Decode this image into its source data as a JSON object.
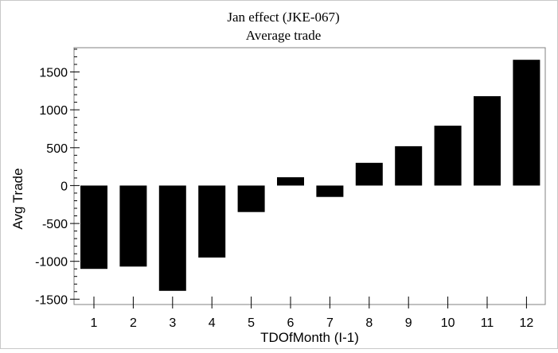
{
  "chart_data": {
    "type": "bar",
    "title": "Jan effect (JKE-067)",
    "subtitle": "Average trade",
    "xlabel": "TDOfMonth (I-1)",
    "ylabel": "Avg Trade",
    "categories": [
      "1",
      "2",
      "3",
      "4",
      "5",
      "6",
      "7",
      "8",
      "9",
      "10",
      "11",
      "12"
    ],
    "values": [
      -1100,
      -1070,
      -1390,
      -950,
      -350,
      110,
      -150,
      300,
      520,
      790,
      1180,
      1660
    ],
    "yticks": [
      -1500,
      -1000,
      -500,
      0,
      500,
      1000,
      1500
    ],
    "ytick_labels": [
      "-1500",
      "-1000",
      "-500",
      "0",
      "500",
      "1000",
      "1500"
    ],
    "ylim": [
      -1570,
      1820
    ],
    "grid": false,
    "bar_color": "#000000",
    "frame_color": "#808080"
  }
}
